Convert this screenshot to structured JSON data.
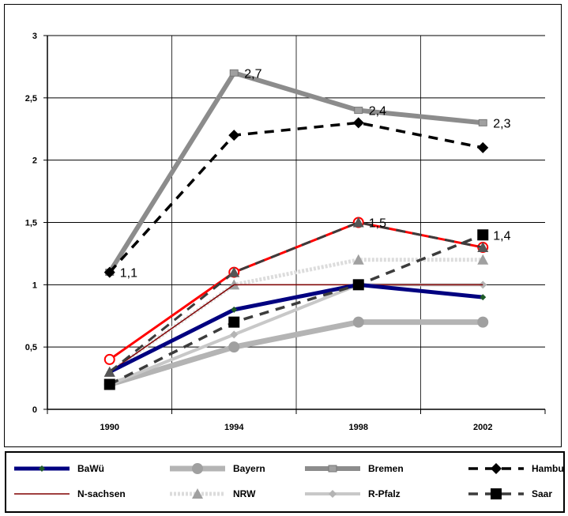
{
  "chart_data": {
    "type": "line",
    "title": "",
    "xlabel": "",
    "ylabel": "",
    "categories": [
      "1990",
      "1994",
      "1998",
      "2002"
    ],
    "y_ticks": [
      "0",
      "0,5",
      "1",
      "1,5",
      "2",
      "2,5",
      "3"
    ],
    "ylim": [
      0,
      3
    ],
    "grid": "horizontal and vertical",
    "legend_position": "bottom",
    "series": [
      {
        "name": "BaWü",
        "values": [
          0.3,
          0.8,
          1.0,
          0.9
        ],
        "color": "#000080",
        "marker": "diamond-small",
        "dash": "solid",
        "width": 5
      },
      {
        "name": "Bayern",
        "values": [
          0.2,
          0.5,
          0.7,
          0.7
        ],
        "color": "#b4b4b4",
        "marker": "circle",
        "dash": "solid",
        "width": 7
      },
      {
        "name": "Bremen",
        "values": [
          1.1,
          2.7,
          2.4,
          2.3
        ],
        "color": "#8c8c8c",
        "marker": "dash",
        "dash": "solid",
        "width": 6
      },
      {
        "name": "Hamburg",
        "values": [
          1.1,
          2.2,
          2.3,
          2.1
        ],
        "color": "#000000",
        "marker": "diamond",
        "dash": "dashed",
        "width": 3.5
      },
      {
        "name": "N-sachsen",
        "values": [
          0.3,
          1.0,
          1.0,
          1.0
        ],
        "color": "#800000",
        "marker": "none",
        "dash": "solid",
        "width": 1.5
      },
      {
        "name": "NRW",
        "values": [
          0.3,
          1.0,
          1.2,
          1.2
        ],
        "color": "#dcdcdc",
        "marker": "triangle",
        "dash": "dotted",
        "width": 5
      },
      {
        "name": "R-Pfalz",
        "values": [
          0.2,
          0.6,
          1.0,
          1.0
        ],
        "color": "#c8c8c8",
        "marker": "diamond-gray",
        "dash": "solid",
        "width": 4
      },
      {
        "name": "Saar",
        "values": [
          0.2,
          0.7,
          1.0,
          1.4
        ],
        "color": "#3c3c3c",
        "marker": "square",
        "dash": "dashed",
        "width": 3.5
      },
      {
        "name": "",
        "values": [
          0.4,
          1.1,
          1.5,
          1.3
        ],
        "color": "#ff0000",
        "marker": "circle-open",
        "dash": "solid",
        "width": 3
      },
      {
        "name": "",
        "values": [
          0.3,
          1.1,
          1.5,
          1.3
        ],
        "color": "#3c3c3c",
        "marker": "triangle-dark",
        "dash": "dashed",
        "width": 3
      }
    ],
    "data_labels": [
      {
        "text": "1,1",
        "category": "1990",
        "value": 1.1
      },
      {
        "text": "2,7",
        "category": "1994",
        "value": 2.7
      },
      {
        "text": "2,4",
        "category": "1998",
        "value": 2.4
      },
      {
        "text": "2,3",
        "category": "2002",
        "value": 2.3
      },
      {
        "text": "1,5",
        "category": "1998",
        "value": 1.5
      },
      {
        "text": "1,4",
        "category": "2002",
        "value": 1.4
      }
    ]
  }
}
